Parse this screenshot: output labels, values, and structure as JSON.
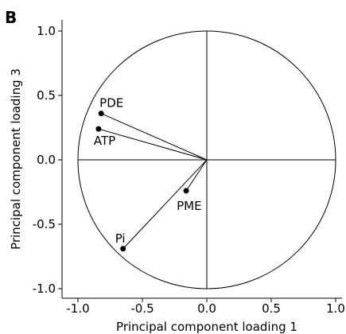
{
  "panel_label": "B",
  "chart_data": {
    "type": "scatter",
    "xlabel": "Principal component loading 1",
    "ylabel": "Principal component loading 3",
    "xlim": [
      -1.0,
      1.0
    ],
    "ylim": [
      -1.0,
      1.0
    ],
    "xticks": [
      "-1.0",
      "-0.5",
      "0.0",
      "0.5",
      "1.0"
    ],
    "yticks": [
      "1.0",
      "0.5",
      "0.0",
      "-0.5",
      "-1.0"
    ],
    "unit_circle": true,
    "crosshair_at_origin": true,
    "vectors_from_origin": true,
    "points": [
      {
        "label": "PDE",
        "x": -0.82,
        "y": 0.36
      },
      {
        "label": "ATP",
        "x": -0.84,
        "y": 0.24
      },
      {
        "label": "PME",
        "x": -0.16,
        "y": -0.24
      },
      {
        "label": "Pi",
        "x": -0.65,
        "y": -0.69
      }
    ]
  }
}
